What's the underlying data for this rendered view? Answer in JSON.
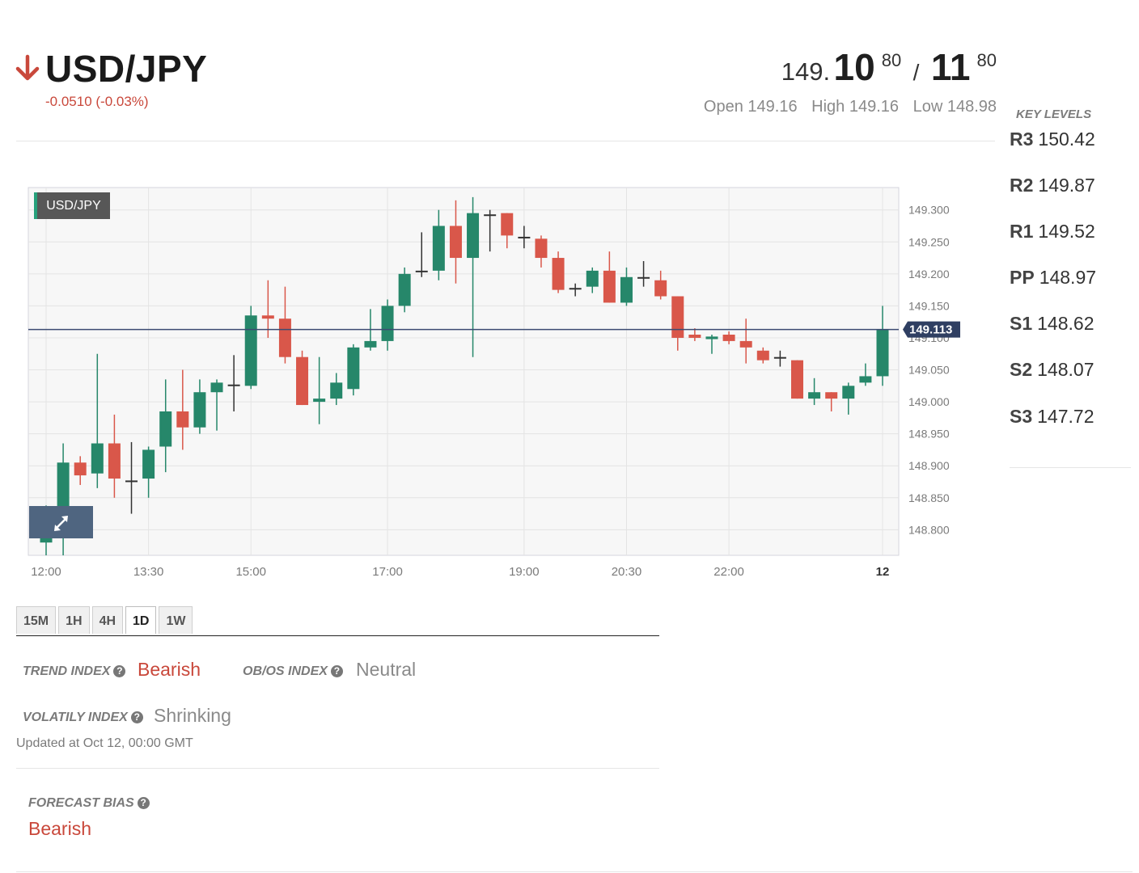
{
  "header": {
    "direction": "down-arrow-icon",
    "symbol": "USD/JPY",
    "change": "-0.0510 (-0.03%)",
    "bid": {
      "prefix": "149.",
      "big": "10",
      "sup": "80"
    },
    "separator": "/",
    "ask": {
      "big": "11",
      "sup": "80"
    },
    "open": "Open 149.16",
    "high": "High 149.16",
    "low": "Low 148.98"
  },
  "key_levels": {
    "title": "KEY LEVELS",
    "items": [
      {
        "label": "R3",
        "value": "150.42"
      },
      {
        "label": "R2",
        "value": "149.87"
      },
      {
        "label": "R1",
        "value": "149.52"
      },
      {
        "label": "PP",
        "value": "148.97"
      },
      {
        "label": "S1",
        "value": "148.62"
      },
      {
        "label": "S2",
        "value": "148.07"
      },
      {
        "label": "S3",
        "value": "147.72"
      }
    ]
  },
  "chart_badge": "USD/JPY",
  "expand_icon": "expand-arrows-icon",
  "chart_data": {
    "type": "candlestick",
    "instrument": "USD/JPY",
    "ylim": [
      148.76,
      149.335
    ],
    "y_ticks": [
      "149.300",
      "149.250",
      "149.200",
      "149.150",
      "149.100",
      "149.050",
      "149.000",
      "148.950",
      "148.900",
      "148.850",
      "148.800"
    ],
    "x_ticks": [
      "12:00",
      "13:30",
      "15:00",
      "17:00",
      "19:00",
      "20:30",
      "22:00",
      "12"
    ],
    "current_price": 149.113,
    "current_price_label": "149.113",
    "colors": {
      "up": "#26876a",
      "down": "#d9574a",
      "neutral": "#333333"
    },
    "candles": [
      {
        "o": 148.78,
        "h": 148.838,
        "l": 148.76,
        "c": 148.83
      },
      {
        "o": 148.83,
        "h": 148.935,
        "l": 148.76,
        "c": 148.905
      },
      {
        "o": 148.905,
        "h": 148.915,
        "l": 148.87,
        "c": 148.885
      },
      {
        "o": 148.888,
        "h": 149.075,
        "l": 148.865,
        "c": 148.935
      },
      {
        "o": 148.935,
        "h": 148.98,
        "l": 148.85,
        "c": 148.88
      },
      {
        "o": 148.877,
        "h": 148.937,
        "l": 148.825,
        "c": 148.877
      },
      {
        "o": 148.88,
        "h": 148.93,
        "l": 148.85,
        "c": 148.925
      },
      {
        "o": 148.93,
        "h": 149.035,
        "l": 148.89,
        "c": 148.985
      },
      {
        "o": 148.985,
        "h": 149.05,
        "l": 148.925,
        "c": 148.96
      },
      {
        "o": 148.96,
        "h": 149.035,
        "l": 148.95,
        "c": 149.015
      },
      {
        "o": 149.015,
        "h": 149.035,
        "l": 148.955,
        "c": 149.03
      },
      {
        "o": 149.027,
        "h": 149.073,
        "l": 148.985,
        "c": 149.027
      },
      {
        "o": 149.025,
        "h": 149.15,
        "l": 149.02,
        "c": 149.135
      },
      {
        "o": 149.135,
        "h": 149.19,
        "l": 149.1,
        "c": 149.13
      },
      {
        "o": 149.13,
        "h": 149.18,
        "l": 149.06,
        "c": 149.07
      },
      {
        "o": 149.07,
        "h": 149.08,
        "l": 148.995,
        "c": 148.995
      },
      {
        "o": 149.0,
        "h": 149.07,
        "l": 148.965,
        "c": 149.005
      },
      {
        "o": 149.005,
        "h": 149.045,
        "l": 148.995,
        "c": 149.03
      },
      {
        "o": 149.02,
        "h": 149.09,
        "l": 149.01,
        "c": 149.085
      },
      {
        "o": 149.085,
        "h": 149.145,
        "l": 149.08,
        "c": 149.095
      },
      {
        "o": 149.095,
        "h": 149.16,
        "l": 149.08,
        "c": 149.15
      },
      {
        "o": 149.15,
        "h": 149.21,
        "l": 149.14,
        "c": 149.2
      },
      {
        "o": 149.205,
        "h": 149.265,
        "l": 149.195,
        "c": 149.205
      },
      {
        "o": 149.205,
        "h": 149.3,
        "l": 149.19,
        "c": 149.275
      },
      {
        "o": 149.275,
        "h": 149.315,
        "l": 149.185,
        "c": 149.225
      },
      {
        "o": 149.225,
        "h": 149.32,
        "l": 149.07,
        "c": 149.295
      },
      {
        "o": 149.293,
        "h": 149.3,
        "l": 149.235,
        "c": 149.293
      },
      {
        "o": 149.295,
        "h": 149.295,
        "l": 149.24,
        "c": 149.26
      },
      {
        "o": 149.258,
        "h": 149.275,
        "l": 149.24,
        "c": 149.258
      },
      {
        "o": 149.255,
        "h": 149.26,
        "l": 149.21,
        "c": 149.225
      },
      {
        "o": 149.225,
        "h": 149.235,
        "l": 149.17,
        "c": 149.175
      },
      {
        "o": 149.178,
        "h": 149.185,
        "l": 149.165,
        "c": 149.178
      },
      {
        "o": 149.18,
        "h": 149.21,
        "l": 149.17,
        "c": 149.205
      },
      {
        "o": 149.205,
        "h": 149.235,
        "l": 149.155,
        "c": 149.155
      },
      {
        "o": 149.155,
        "h": 149.21,
        "l": 149.15,
        "c": 149.195
      },
      {
        "o": 149.195,
        "h": 149.22,
        "l": 149.18,
        "c": 149.195
      },
      {
        "o": 149.19,
        "h": 149.205,
        "l": 149.16,
        "c": 149.165
      },
      {
        "o": 149.165,
        "h": 149.165,
        "l": 149.08,
        "c": 149.1
      },
      {
        "o": 149.105,
        "h": 149.115,
        "l": 149.095,
        "c": 149.1
      },
      {
        "o": 149.098,
        "h": 149.105,
        "l": 149.075,
        "c": 149.102
      },
      {
        "o": 149.105,
        "h": 149.11,
        "l": 149.09,
        "c": 149.095
      },
      {
        "o": 149.095,
        "h": 149.13,
        "l": 149.06,
        "c": 149.085
      },
      {
        "o": 149.08,
        "h": 149.085,
        "l": 149.06,
        "c": 149.065
      },
      {
        "o": 149.07,
        "h": 149.08,
        "l": 149.055,
        "c": 149.07
      },
      {
        "o": 149.065,
        "h": 149.065,
        "l": 149.005,
        "c": 149.005
      },
      {
        "o": 149.005,
        "h": 149.037,
        "l": 148.995,
        "c": 149.015
      },
      {
        "o": 149.015,
        "h": 149.015,
        "l": 148.985,
        "c": 149.005
      },
      {
        "o": 149.005,
        "h": 149.03,
        "l": 148.98,
        "c": 149.025
      },
      {
        "o": 149.03,
        "h": 149.06,
        "l": 149.025,
        "c": 149.04
      },
      {
        "o": 149.04,
        "h": 149.15,
        "l": 149.025,
        "c": 149.113
      }
    ]
  },
  "timeframes": {
    "items": [
      "15M",
      "1H",
      "4H",
      "1D",
      "1W"
    ],
    "active": "1D"
  },
  "indexes": {
    "trend": {
      "label": "TREND INDEX",
      "value": "Bearish"
    },
    "obos": {
      "label": "OB/OS INDEX",
      "value": "Neutral"
    },
    "volatility": {
      "label": "VOLATILY INDEX",
      "value": "Shrinking"
    },
    "help_icon": "question-circle-icon",
    "updated": "Updated at Oct 12, 00:00 GMT"
  },
  "forecast": {
    "label": "FORECAST BIAS",
    "value": "Bearish"
  }
}
